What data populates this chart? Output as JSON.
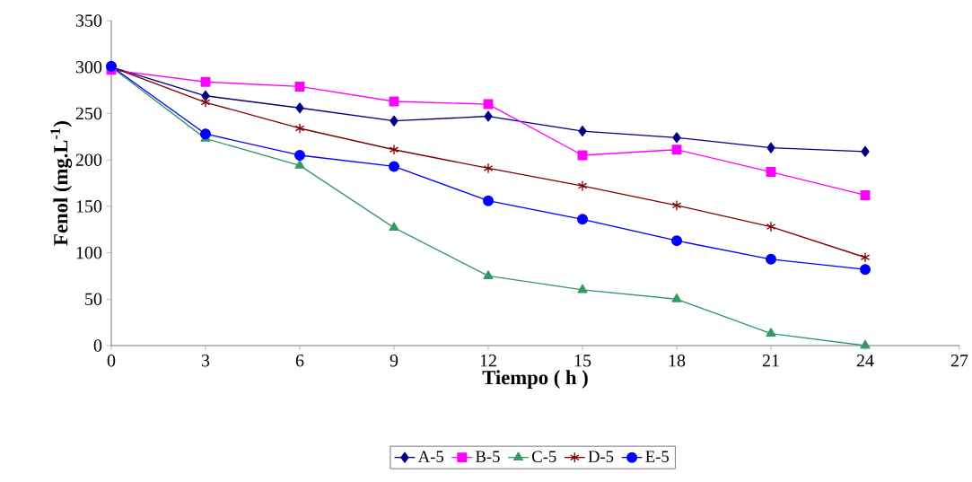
{
  "chart_data": {
    "type": "line",
    "xlabel": "Tiempo ( h )",
    "ylabel": "Fenol (mg.L$^{-1}$)",
    "x": [
      0,
      3,
      6,
      9,
      12,
      15,
      18,
      21,
      24
    ],
    "series": [
      {
        "name": "A-5",
        "color": "#000080",
        "marker": "diamond",
        "values": [
          300,
          269,
          256,
          242,
          247,
          231,
          224,
          213,
          209
        ]
      },
      {
        "name": "B-5",
        "color": "#ff00ff",
        "marker": "square",
        "values": [
          297,
          284,
          279,
          263,
          260,
          205,
          211,
          187,
          162
        ]
      },
      {
        "name": "C-5",
        "color": "#339966",
        "marker": "triangle",
        "values": [
          300,
          223,
          194,
          127,
          75,
          60,
          50,
          13,
          0
        ]
      },
      {
        "name": "D-5",
        "color": "#800000",
        "marker": "cross",
        "values": [
          300,
          262,
          234,
          211,
          191,
          172,
          151,
          128,
          95
        ]
      },
      {
        "name": "E-5",
        "color": "#0000ff",
        "marker": "circle",
        "values": [
          301,
          228,
          205,
          193,
          156,
          136,
          113,
          93,
          82
        ]
      }
    ],
    "xlim": [
      0,
      27
    ],
    "ylim": [
      0,
      350
    ],
    "xticks": [
      0,
      3,
      6,
      9,
      12,
      15,
      18,
      21,
      24,
      27
    ],
    "yticks": [
      0,
      50,
      100,
      150,
      200,
      250,
      300,
      350
    ],
    "grid": false,
    "legend": "bottom",
    "line_style": "solid"
  }
}
